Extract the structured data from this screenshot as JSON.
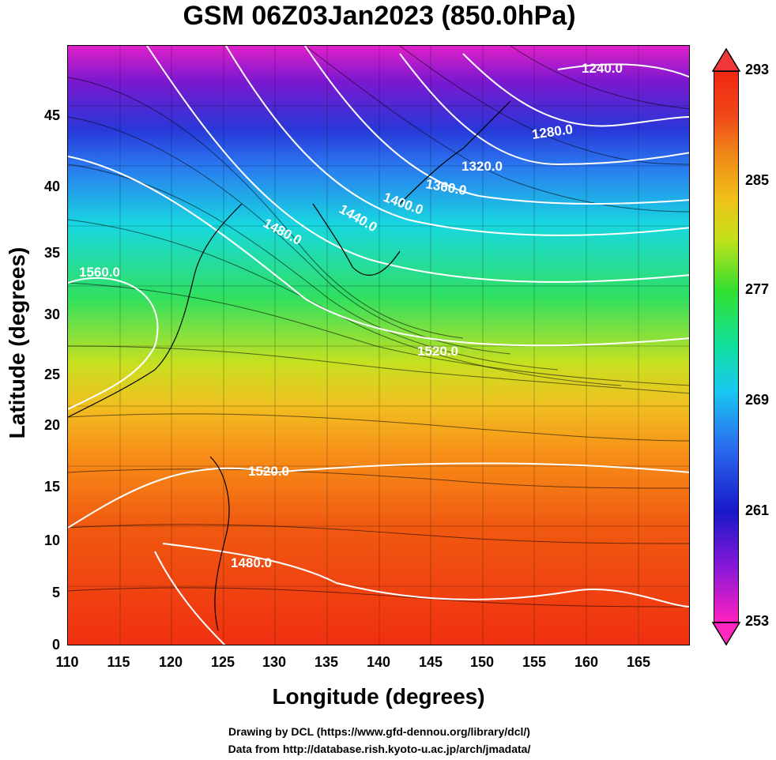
{
  "title": "GSM 06Z03Jan2023 (850.0hPa)",
  "axes": {
    "xlabel": "Longitude (degrees)",
    "ylabel": "Latitude  (degrees)",
    "xticks": [
      "110",
      "115",
      "120",
      "125",
      "130",
      "135",
      "140",
      "145",
      "150",
      "155",
      "160",
      "165"
    ],
    "yticks": [
      "0",
      "5",
      "10",
      "15",
      "20",
      "25",
      "30",
      "35",
      "40",
      "45"
    ]
  },
  "colorbar": {
    "ticks": [
      "293",
      "285",
      "277",
      "269",
      "261",
      "253"
    ],
    "min": 253,
    "max": 293
  },
  "contour_labels": [
    "1240.0",
    "1280.0",
    "1320.0",
    "1360.0",
    "1400.0",
    "1440.0",
    "1480.0",
    "1560.0",
    "1520.0",
    "1520.0",
    "1480.0"
  ],
  "footer": {
    "line1": "Drawing by DCL (https://www.gfd-dennou.org/library/dcl/)",
    "line2": "Data from http://database.rish.kyoto-u.ac.jp/arch/jmadata/"
  }
}
